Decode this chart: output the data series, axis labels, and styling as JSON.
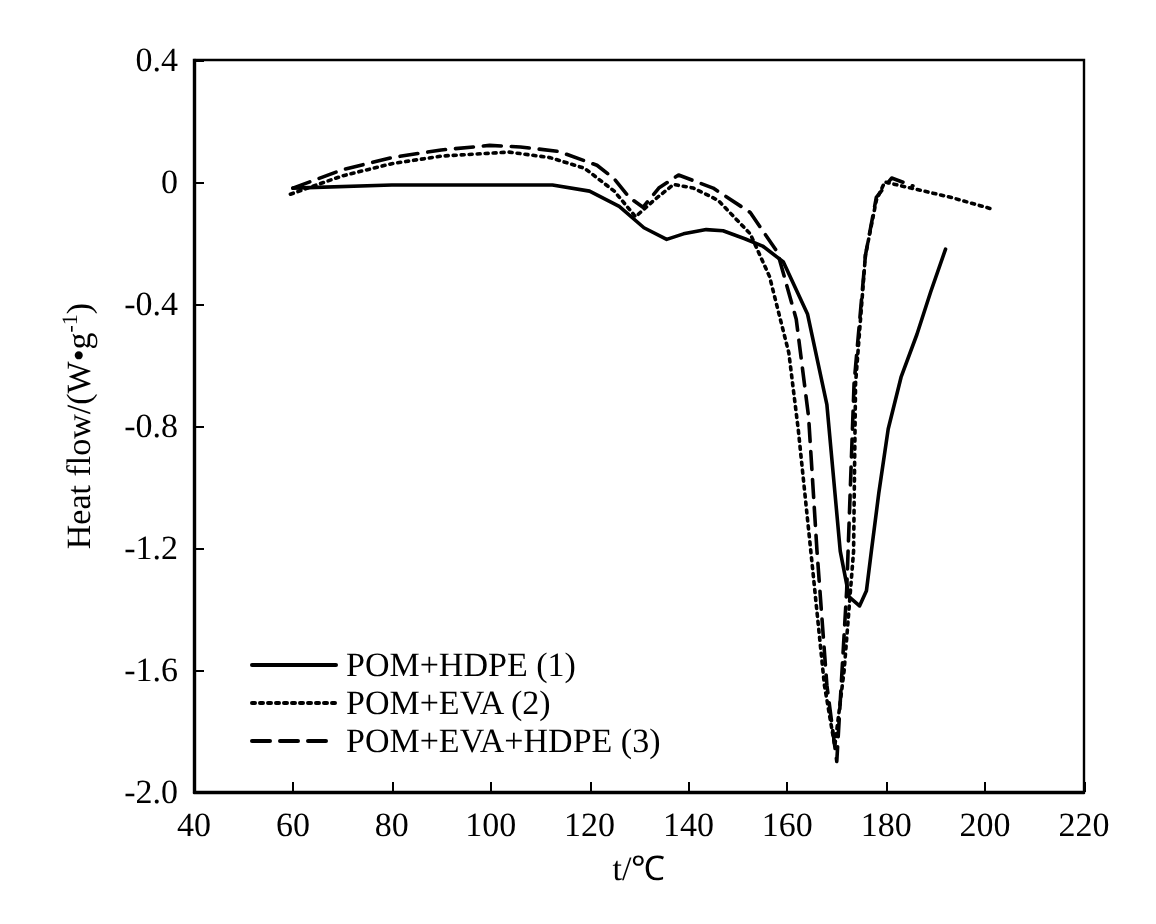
{
  "chart_data": {
    "type": "line",
    "xlabel": "t/℃",
    "ylabel": "Heat flow/(W•g$^{-1}$)",
    "xlim": [
      40,
      220
    ],
    "xticks": [
      40,
      60,
      80,
      100,
      120,
      140,
      160,
      180,
      200,
      220
    ],
    "ylim": [
      -2,
      0.4
    ],
    "yticks": [
      {
        "value": -2,
        "label": "-2.0"
      },
      -1.6,
      -1.2,
      -0.8,
      -0.4,
      0,
      0.4
    ],
    "legend": "bottom left",
    "grid": false,
    "marker": "none",
    "series": [
      {
        "name": "POM+HDPE (1)",
        "color": "#000000",
        "line_style": "solid",
        "x": [
          60,
          80,
          100,
          112.5,
          120,
          126,
          131,
          135.6,
          139,
          143.6,
          147,
          151.4,
          155,
          159.2,
          164.1,
          168,
          170.7,
          172.5,
          174.6,
          176,
          177,
          178.5,
          180.4,
          183,
          186.2,
          189,
          192
        ],
        "values": [
          -0.02,
          -0.01,
          -0.01,
          -0.01,
          -0.03,
          -0.08,
          -0.15,
          -0.188,
          -0.17,
          -0.156,
          -0.16,
          -0.186,
          -0.21,
          -0.262,
          -0.434,
          -0.73,
          -1.21,
          -1.36,
          -1.39,
          -1.34,
          -1.21,
          -1.02,
          -0.81,
          -0.64,
          -0.5,
          -0.36,
          -0.22
        ]
      },
      {
        "name": "POM+EVA (2)",
        "color": "#000000",
        "line_style": "dotted",
        "x": [
          59.5,
          70,
          80,
          90,
          103.7,
          112,
          119,
          125,
          129.3,
          133,
          137,
          141,
          146,
          152.5,
          156.4,
          160.3,
          162.2,
          165,
          167.5,
          169.6,
          171.5,
          173.4,
          173.8,
          175.8,
          178,
          179.7,
          185,
          193,
          201.7
        ],
        "values": [
          -0.04,
          0.02,
          0.06,
          0.085,
          0.098,
          0.08,
          0.045,
          -0.03,
          -0.114,
          -0.06,
          -0.008,
          -0.02,
          -0.06,
          -0.17,
          -0.31,
          -0.56,
          -0.81,
          -1.25,
          -1.65,
          -1.85,
          -1.6,
          -1.21,
          -0.66,
          -0.24,
          -0.06,
          0,
          -0.02,
          -0.05,
          -0.09
        ]
      },
      {
        "name": "POM+EVA+HDPE (3)",
        "color": "#000000",
        "line_style": "dashed",
        "x": [
          60,
          70,
          80,
          90,
          99.8,
          106,
          113.8,
          121.5,
          125,
          128,
          130.8,
          134,
          138,
          145,
          152.5,
          158,
          161.8,
          164.3,
          166,
          168,
          170,
          172,
          173.5,
          175.8,
          178,
          181.1,
          185.4
        ],
        "values": [
          -0.02,
          0.04,
          0.08,
          0.105,
          0.12,
          0.115,
          0.1,
          0.055,
          0.01,
          -0.05,
          -0.083,
          -0.02,
          0.023,
          -0.02,
          -0.1,
          -0.23,
          -0.45,
          -0.77,
          -1.21,
          -1.65,
          -1.9,
          -1.34,
          -0.66,
          -0.24,
          -0.05,
          0.013,
          -0.013
        ]
      }
    ]
  }
}
